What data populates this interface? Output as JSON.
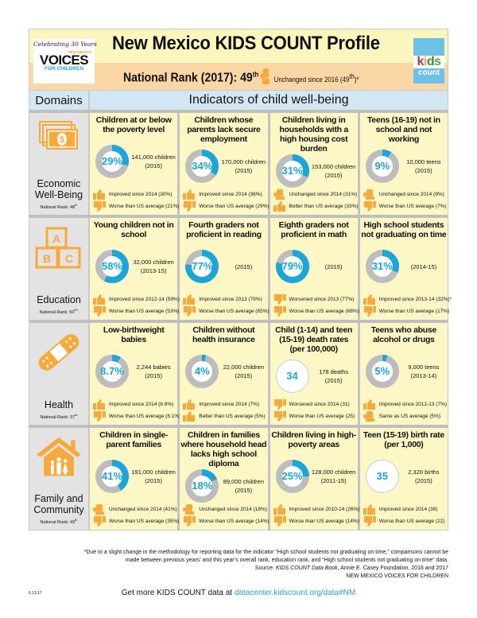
{
  "header": {
    "logo_celebrating": "Celebrating 30 Years",
    "logo_state": "NEW MEXICO",
    "logo_voices": "VOICES",
    "logo_for": "FOR CHILDREN",
    "title": "New Mexico KIDS COUNT Profile",
    "rank_label": "National Rank (2017): 49",
    "rank_suffix": "th",
    "rank_change_pre": "Unchanged since 2016 (49",
    "rank_change_suffix": "th",
    "rank_change_post": ")*",
    "kc_logo": "kids count"
  },
  "columns": {
    "domains": "Domains",
    "indicators": "Indicators of child well-being"
  },
  "colors": {
    "blue": "#1aa6d9",
    "gray": "#bdbdbd",
    "orange": "#f7a93c"
  },
  "domains": [
    {
      "name": "Economic Well-Being",
      "icon": "money-icon",
      "rank_label": "National Rank: 48",
      "rank_suffix": "th",
      "indicators": [
        {
          "title": "Children at or below the poverty level",
          "value": "29%",
          "pct": 29,
          "count": "141,000 children",
          "year": "(2015)",
          "trends": [
            {
              "icon": "thumbs-up",
              "text": "Improved since 2014 (30%)"
            },
            {
              "icon": "thumbs-down",
              "text": "Worse than US average (21%)"
            }
          ]
        },
        {
          "title": "Children whose parents lack secure employment",
          "value": "34%",
          "pct": 34,
          "count": "170,000 children",
          "year": "(2015)",
          "trends": [
            {
              "icon": "thumbs-up",
              "text": "Improved since 2014 (36%)"
            },
            {
              "icon": "thumbs-down",
              "text": "Worse than US average (29%)"
            }
          ]
        },
        {
          "title": "Children living in households with a high housing cost burden",
          "value": "31%",
          "pct": 31,
          "count": "153,000 children",
          "year": "(2015)",
          "trends": [
            {
              "icon": "hand-flat",
              "text": "Unchanged since 2014 (31%)"
            },
            {
              "icon": "thumbs-up",
              "text": "Better than US average (33%)"
            }
          ]
        },
        {
          "title": "Teens (16-19) not in school and not working",
          "value": "9%",
          "pct": 9,
          "count": "10,000 teens",
          "year": "(2015)",
          "trends": [
            {
              "icon": "hand-flat",
              "text": "Unchanged since 2014 (9%)"
            },
            {
              "icon": "thumbs-down",
              "text": "Worse than US average (7%)"
            }
          ]
        }
      ]
    },
    {
      "name": "Education",
      "icon": "abc-blocks-icon",
      "rank_label": "National Rank: 50",
      "rank_suffix": "th*",
      "indicators": [
        {
          "title": "Young children not in school",
          "value": "58%",
          "pct": 58,
          "count": "32,000 children",
          "year": "(2013-15)",
          "trends": [
            {
              "icon": "thumbs-up",
              "text": "Improved since 2012-14 (59%)"
            },
            {
              "icon": "thumbs-down",
              "text": "Worse than US average (53%)"
            }
          ]
        },
        {
          "title": "Fourth graders not proficient in reading",
          "value": "77%",
          "pct": 77,
          "count": "",
          "year": "(2015)",
          "trends": [
            {
              "icon": "thumbs-up",
              "text": "Improved since 2013 (79%)"
            },
            {
              "icon": "thumbs-down",
              "text": "Worse than US average (65%)"
            }
          ]
        },
        {
          "title": "Eighth graders not proficient in math",
          "value": "79%",
          "pct": 79,
          "count": "",
          "year": "(2015)",
          "trends": [
            {
              "icon": "thumbs-down",
              "text": "Worsened since 2013 (77%)"
            },
            {
              "icon": "thumbs-down",
              "text": "Worse than US average (68%)"
            }
          ]
        },
        {
          "title": "High school students not graduating on time",
          "value": "31%",
          "pct": 31,
          "count": "",
          "year": "(2014-15)",
          "trends": [
            {
              "icon": "thumbs-up",
              "text": "Improved since 2013-14 (32%)*"
            },
            {
              "icon": "thumbs-down",
              "text": "Worse than US average (17%)"
            }
          ]
        }
      ]
    },
    {
      "name": "Health",
      "icon": "bandage-icon",
      "rank_label": "National Rank: 37",
      "rank_suffix": "th",
      "indicators": [
        {
          "title": "Low-birthweight babies",
          "value": "8.7%",
          "pct": 8.7,
          "count": "2,244 babies",
          "year": "(2015)",
          "trends": [
            {
              "icon": "thumbs-up",
              "text": "Improved since 2014 (8.8%)"
            },
            {
              "icon": "thumbs-down",
              "text": "Worse than US average (8.1%)"
            }
          ]
        },
        {
          "title": "Children without health insurance",
          "value": "4%",
          "pct": 4,
          "count": "22,000 children",
          "year": "(2015)",
          "trends": [
            {
              "icon": "thumbs-up",
              "text": "Improved since 2014 (7%)"
            },
            {
              "icon": "thumbs-up",
              "text": "Better than US average (5%)"
            }
          ]
        },
        {
          "title": "Child (1-14) and teen (15-19) death rates (per 100,000)",
          "value": "34",
          "pct": null,
          "count": "178 deaths",
          "year": "(2015)",
          "trends": [
            {
              "icon": "thumbs-down",
              "text": "Worsened since 2014 (31)"
            },
            {
              "icon": "thumbs-down",
              "text": "Worse than US average (25)"
            }
          ]
        },
        {
          "title": "Teens who abuse alcohol or drugs",
          "value": "5%",
          "pct": 5,
          "count": "9,000 teens",
          "year": "(2013-14)",
          "trends": [
            {
              "icon": "thumbs-up",
              "text": "Improved since 2012-13 (7%)"
            },
            {
              "icon": "hand-flat",
              "text": "Same as US average (5%)"
            }
          ]
        }
      ]
    },
    {
      "name": "Family and Community",
      "icon": "house-family-icon",
      "rank_label": "National Rank: 49",
      "rank_suffix": "th",
      "indicators": [
        {
          "title": "Children in single-parent families",
          "value": "41%",
          "pct": 41,
          "count": "191,000 children",
          "year": "(2015)",
          "trends": [
            {
              "icon": "hand-flat",
              "text": "Unchanged since 2014 (41%)"
            },
            {
              "icon": "thumbs-down",
              "text": "Worse than US average (35%)"
            }
          ]
        },
        {
          "title": "Children in families where household head lacks high school diploma",
          "value": "18%",
          "pct": 18,
          "count": "89,000 children",
          "year": "(2015)",
          "trends": [
            {
              "icon": "hand-flat",
              "text": "Unchanged since 2014 (18%)"
            },
            {
              "icon": "thumbs-down",
              "text": "Worse than US average (14%)"
            }
          ]
        },
        {
          "title": "Children living in high-poverty areas",
          "value": "25%",
          "pct": 25,
          "count": "128,000 children",
          "year": "(2011-15)",
          "trends": [
            {
              "icon": "thumbs-up",
              "text": "Improved since 2010-14 (26%)"
            },
            {
              "icon": "thumbs-down",
              "text": "Worse than US average (14%)"
            }
          ]
        },
        {
          "title": "Teen (15-19) birth rate (per 1,000)",
          "value": "35",
          "pct": null,
          "count": "2,320 births",
          "year": "(2015)",
          "trends": [
            {
              "icon": "thumbs-up",
              "text": "Improved since 2014 (38)"
            },
            {
              "icon": "thumbs-down",
              "text": "Worse than US average (22)"
            }
          ]
        }
      ]
    }
  ],
  "footer": {
    "note1": "*Due to a slight change in the methodology for reporting data for the indicator “High school students not graduating on time,” comparisons cannot be",
    "note2": "made between previous years’ and this year’s overall rank, education rank, and “High school students not graduating on time” data.",
    "source_pre": "Source: ",
    "source_title": "KIDS COUNT Data Book",
    "source_post": ", Annie E. Casey Foundation, 2016 and 2017",
    "org": "NEW MEXICO VOICES FOR CHILDREN",
    "date": "6.13.17",
    "more_pre": "Get more KIDS COUNT data at ",
    "more_link": "datacenter.kidscount.org/data#NM"
  }
}
